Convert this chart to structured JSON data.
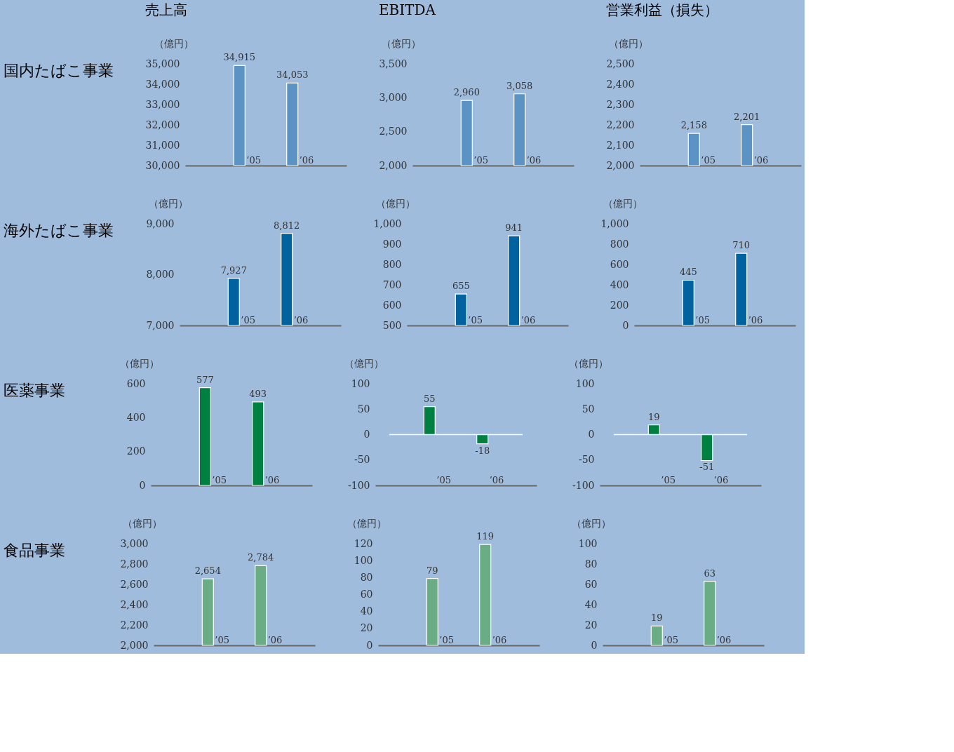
{
  "chart_data": [
    {
      "type": "other",
      "title": "国内たばこ事業"
    },
    {
      "type": "bar",
      "title": "売上高",
      "ylabel": "（億円）",
      "categories": [
        "’05",
        "’06"
      ],
      "values": [
        34915,
        34053
      ],
      "value_labels": [
        "34,915",
        "34,053"
      ],
      "color": "#5b93c5",
      "ylim": [
        30000,
        35000
      ],
      "yticks": [
        {
          "value": 30000,
          "label": "30,000"
        },
        {
          "value": 31000,
          "label": "31,000"
        },
        {
          "value": 32000,
          "label": "32,000"
        },
        {
          "value": 33000,
          "label": "33,000"
        },
        {
          "value": 34000,
          "label": "34,000"
        },
        {
          "value": 35000,
          "label": "35,000"
        }
      ]
    },
    {
      "type": "bar",
      "title": "EBITDA",
      "ylabel": "（億円）",
      "categories": [
        "’05",
        "’06"
      ],
      "values": [
        2960,
        3058
      ],
      "value_labels": [
        "2,960",
        "3,058"
      ],
      "color": "#5b93c5",
      "ylim": [
        2000,
        3500
      ],
      "yticks": [
        {
          "value": 2000,
          "label": "2,000"
        },
        {
          "value": 2500,
          "label": "2,500"
        },
        {
          "value": 3000,
          "label": "3,000"
        },
        {
          "value": 3500,
          "label": "3,500"
        }
      ]
    },
    {
      "type": "bar",
      "title": "営業利益（損失）",
      "ylabel": "（億円）",
      "categories": [
        "’05",
        "’06"
      ],
      "values": [
        2158,
        2201
      ],
      "value_labels": [
        "2,158",
        "2,201"
      ],
      "color": "#5b93c5",
      "ylim": [
        2000,
        2500
      ],
      "yticks": [
        {
          "value": 2000,
          "label": "2,000"
        },
        {
          "value": 2100,
          "label": "2,100"
        },
        {
          "value": 2200,
          "label": "2,200"
        },
        {
          "value": 2300,
          "label": "2,300"
        },
        {
          "value": 2400,
          "label": "2,400"
        },
        {
          "value": 2500,
          "label": "2,500"
        }
      ]
    },
    {
      "type": "other",
      "title": "海外たばこ事業"
    },
    {
      "type": "bar",
      "ylabel": "（億円）",
      "categories": [
        "’05",
        "’06"
      ],
      "values": [
        7927,
        8812
      ],
      "value_labels": [
        "7,927",
        "8,812"
      ],
      "color": "#0063a0",
      "ylim": [
        7000,
        9000
      ],
      "yticks": [
        {
          "value": 7000,
          "label": "7,000"
        },
        {
          "value": 8000,
          "label": "8,000"
        },
        {
          "value": 9000,
          "label": "9,000"
        }
      ]
    },
    {
      "type": "bar",
      "ylabel": "（億円）",
      "categories": [
        "’05",
        "’06"
      ],
      "values": [
        655,
        941
      ],
      "value_labels": [
        "655",
        "941"
      ],
      "color": "#0063a0",
      "ylim": [
        500,
        1000
      ],
      "yticks": [
        500,
        600,
        700,
        800,
        900,
        {
          "value": 1000,
          "label": "1,000"
        }
      ]
    },
    {
      "type": "bar",
      "ylabel": "（億円）",
      "categories": [
        "’05",
        "’06"
      ],
      "values": [
        445,
        710
      ],
      "value_labels": [
        "445",
        "710"
      ],
      "color": "#0063a0",
      "ylim": [
        0,
        1000
      ],
      "yticks": [
        0,
        200,
        400,
        600,
        800,
        {
          "value": 1000,
          "label": "1,000"
        }
      ]
    },
    {
      "type": "other",
      "title": "医薬事業"
    },
    {
      "type": "bar",
      "ylabel": "（億円）",
      "categories": [
        "’05",
        "’06"
      ],
      "values": [
        577,
        493
      ],
      "value_labels": [
        "577",
        "493"
      ],
      "color": "#008040",
      "ylim": [
        0,
        600
      ],
      "yticks": [
        0,
        200,
        400,
        600
      ]
    },
    {
      "type": "bar",
      "ylabel": "（億円）",
      "categories": [
        "’05",
        "’06"
      ],
      "values": [
        55,
        -18
      ],
      "value_labels": [
        "55",
        "-18"
      ],
      "color": "#008040",
      "ylim": [
        -100,
        100
      ],
      "yticks": [
        -100,
        -50,
        0,
        50,
        100
      ],
      "ref_lines": [
        {
          "axis": "y",
          "value": 0,
          "color": "#ffffff"
        }
      ]
    },
    {
      "type": "bar",
      "ylabel": "（億円）",
      "categories": [
        "’05",
        "’06"
      ],
      "values": [
        19,
        -51
      ],
      "value_labels": [
        "19",
        "-51"
      ],
      "color": "#008040",
      "ylim": [
        -100,
        100
      ],
      "yticks": [
        -100,
        -50,
        0,
        50,
        100
      ],
      "ref_lines": [
        {
          "axis": "y",
          "value": 0,
          "color": "#ffffff"
        }
      ]
    },
    {
      "type": "other",
      "title": "食品事業"
    },
    {
      "type": "bar",
      "ylabel": "（億円）",
      "categories": [
        "’05",
        "’06"
      ],
      "values": [
        2654,
        2784
      ],
      "value_labels": [
        "2,654",
        "2,784"
      ],
      "color": "#6aad84",
      "ylim": [
        2000,
        3000
      ],
      "yticks": [
        {
          "value": 2000,
          "label": "2,000"
        },
        {
          "value": 2200,
          "label": "2,200"
        },
        {
          "value": 2400,
          "label": "2,400"
        },
        {
          "value": 2600,
          "label": "2,600"
        },
        {
          "value": 2800,
          "label": "2,800"
        },
        {
          "value": 3000,
          "label": "3,000"
        }
      ]
    },
    {
      "type": "bar",
      "ylabel": "（億円）",
      "categories": [
        "’05",
        "’06"
      ],
      "values": [
        79,
        119
      ],
      "value_labels": [
        "79",
        "119"
      ],
      "color": "#6aad84",
      "ylim": [
        0,
        120
      ],
      "yticks": [
        0,
        20,
        40,
        60,
        80,
        100,
        120
      ]
    },
    {
      "type": "bar",
      "ylabel": "（億円）",
      "categories": [
        "’05",
        "’06"
      ],
      "values": [
        19,
        63
      ],
      "value_labels": [
        "19",
        "63"
      ],
      "color": "#6aad84",
      "ylim": [
        0,
        100
      ],
      "yticks": [
        0,
        20,
        40,
        60,
        80,
        100
      ]
    }
  ]
}
